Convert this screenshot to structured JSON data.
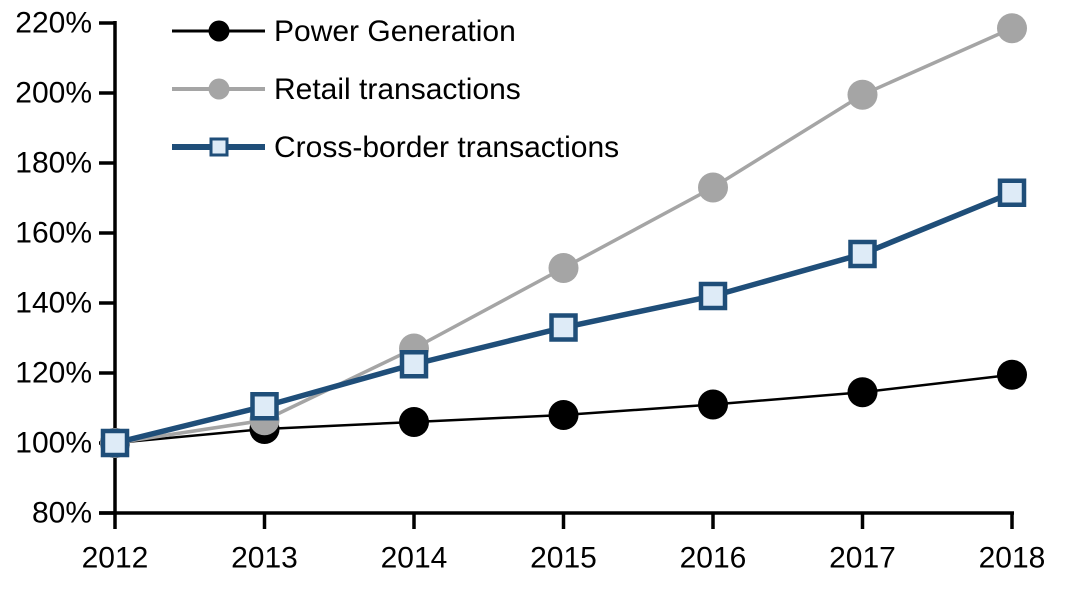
{
  "chart_data": {
    "type": "line",
    "title": "",
    "xlabel": "",
    "ylabel": "",
    "categories": [
      "2012",
      "2013",
      "2014",
      "2015",
      "2016",
      "2017",
      "2018"
    ],
    "series": [
      {
        "name": "Power Generation",
        "marker": "circle",
        "line_color": "#000000",
        "marker_fill": "#000000",
        "marker_stroke": "#000000",
        "line_width": 2.5,
        "values": [
          100,
          104,
          106,
          108,
          111,
          114.5,
          119.5
        ]
      },
      {
        "name": "Retail transactions",
        "marker": "circle",
        "line_color": "#A5A5A5",
        "marker_fill": "#A5A5A5",
        "marker_stroke": "#A5A5A5",
        "line_width": 3.5,
        "values": [
          100,
          106.5,
          127,
          150,
          173,
          199.5,
          218.5
        ]
      },
      {
        "name": "Cross-border transactions",
        "marker": "square",
        "line_color": "#1F4E79",
        "marker_fill": "#DEEBF7",
        "marker_stroke": "#1F4E79",
        "line_width": 5.5,
        "values": [
          100,
          110.5,
          122.5,
          133,
          142,
          154,
          171.5
        ]
      }
    ],
    "ylim": [
      80,
      220
    ],
    "ytick_step": 20,
    "ytick_labels": [
      "80%",
      "100%",
      "120%",
      "140%",
      "160%",
      "180%",
      "200%",
      "220%"
    ],
    "xtick_labels": [
      "2012",
      "2013",
      "2014",
      "2015",
      "2016",
      "2017",
      "2018"
    ],
    "grid": false,
    "legend_position": "top-left",
    "axis_color": "#000000",
    "text_color": "#000000",
    "background": "#FFFFFF"
  },
  "legend": {
    "items": [
      {
        "label": "Power Generation"
      },
      {
        "label": "Retail transactions"
      },
      {
        "label": "Cross-border transactions"
      }
    ]
  }
}
